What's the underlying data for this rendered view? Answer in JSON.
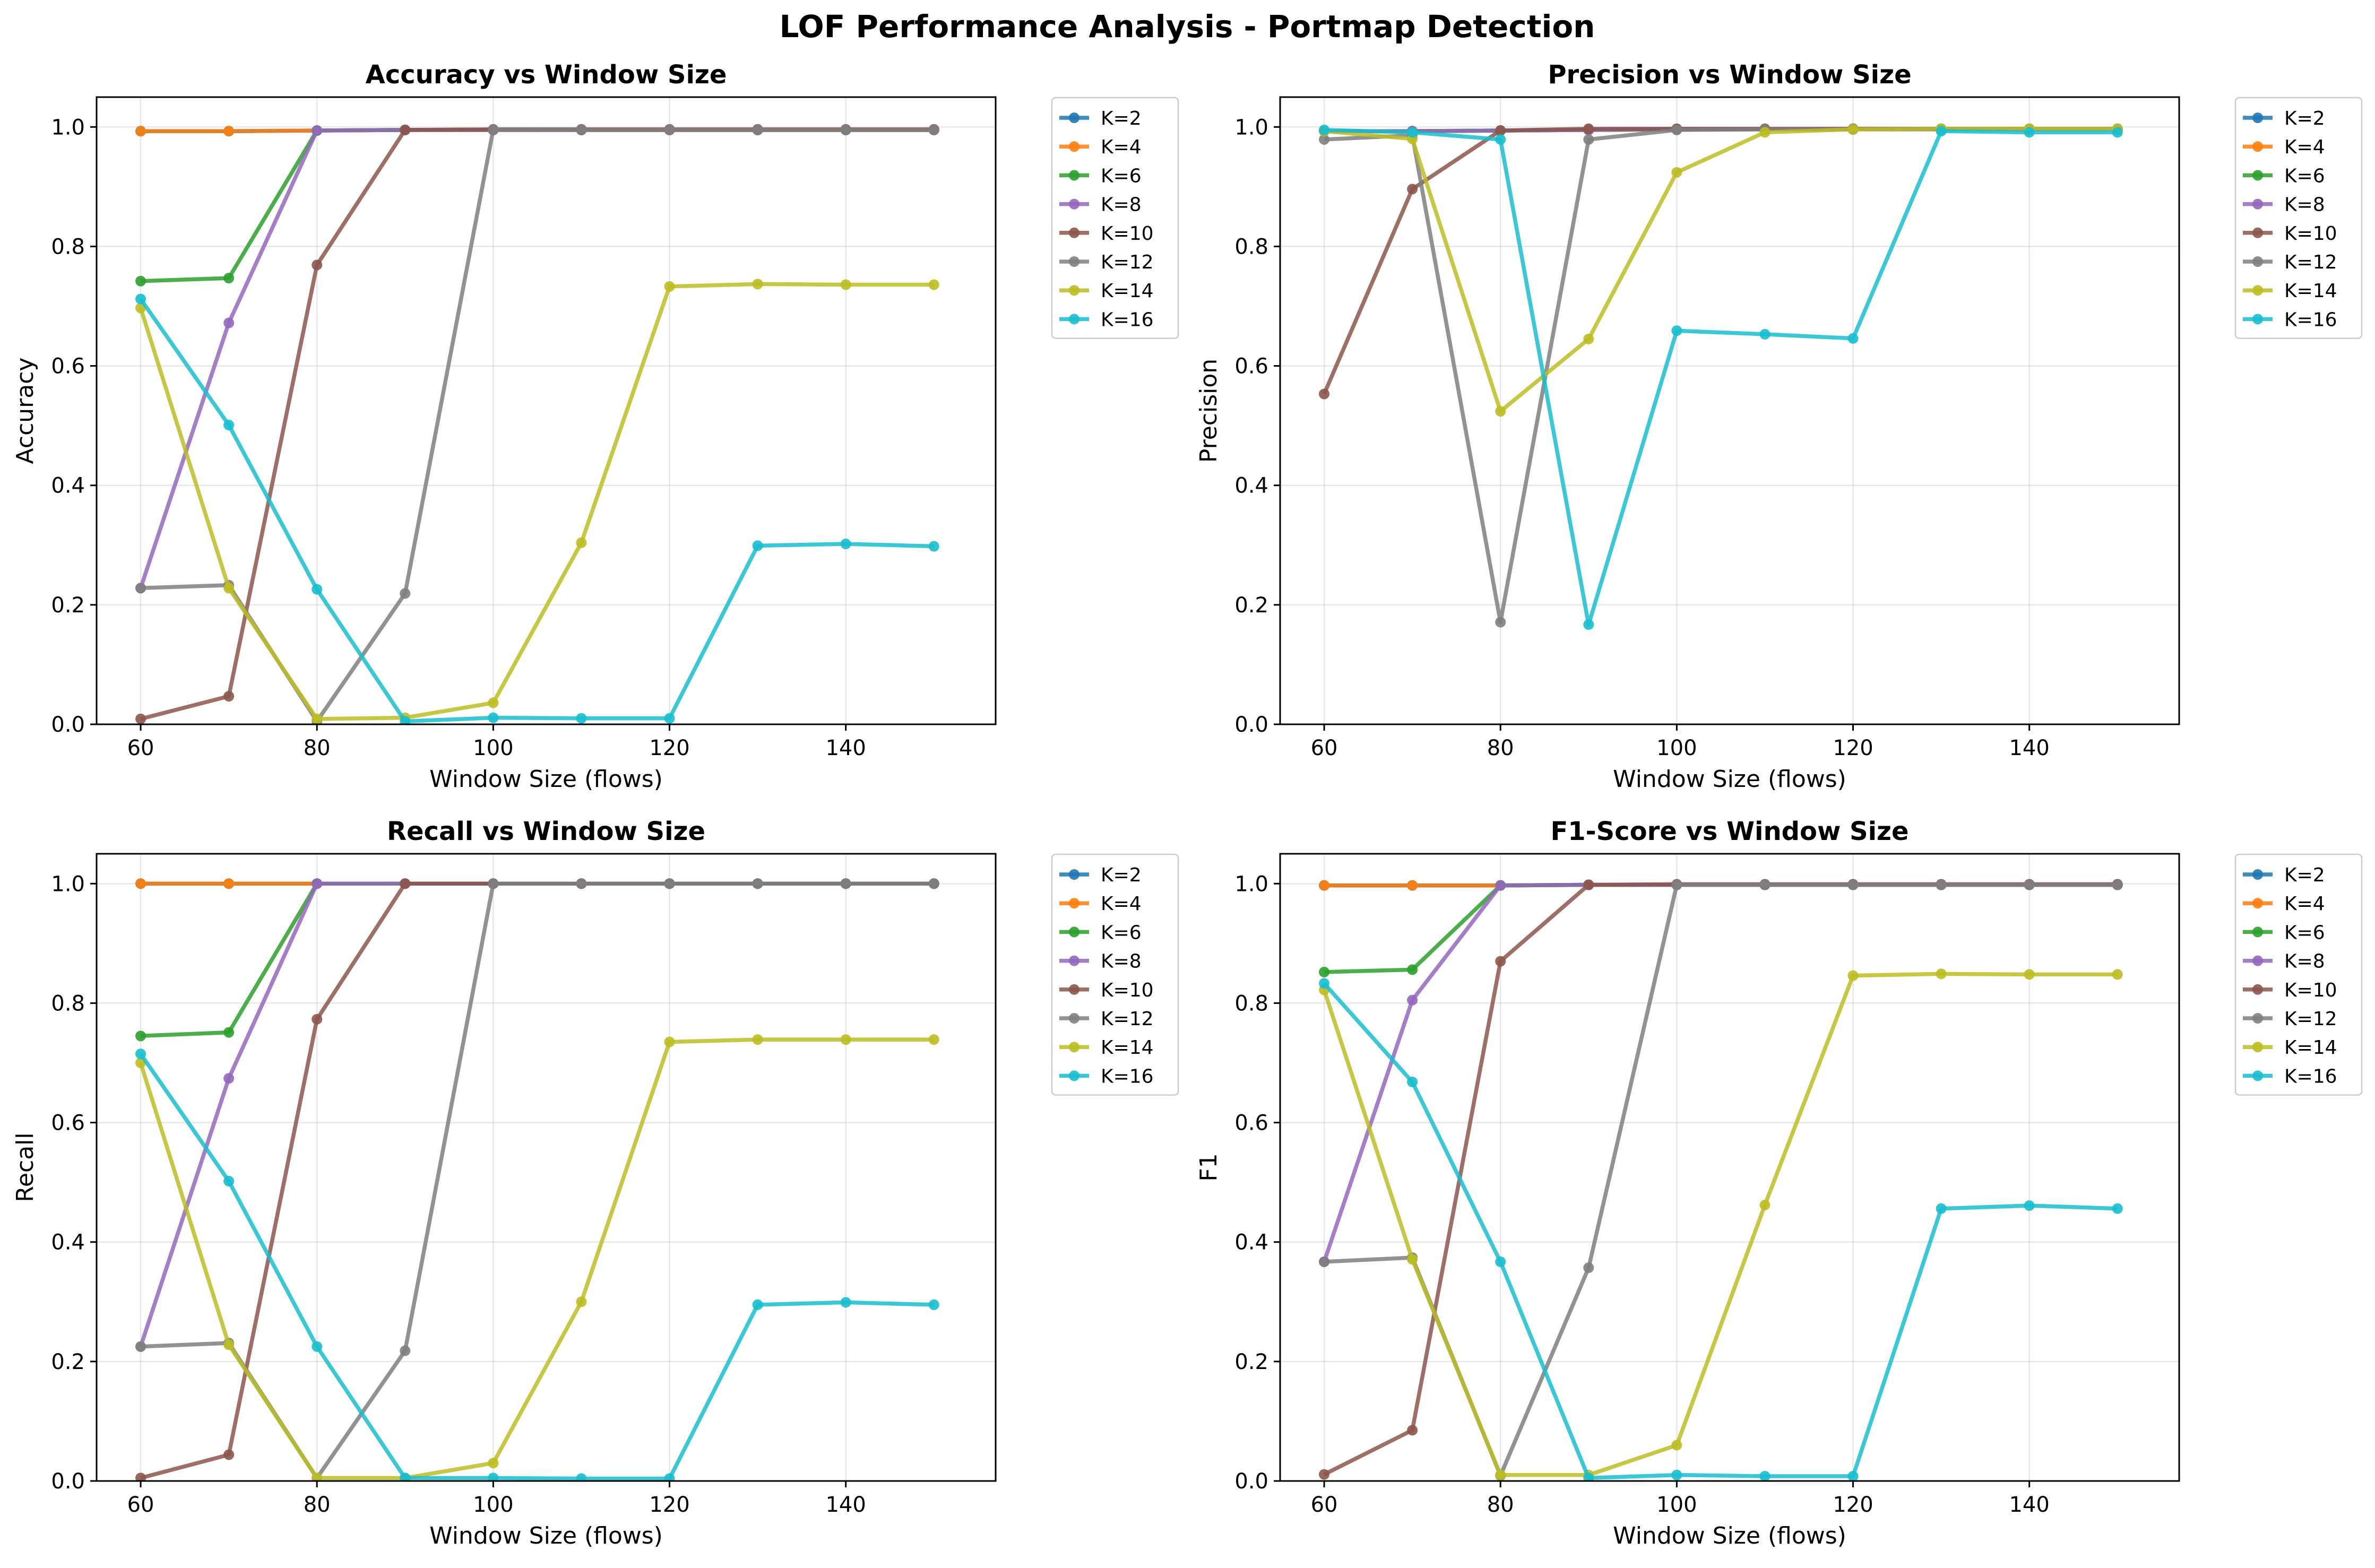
{
  "suptitle": "LOF Performance Analysis - Portmap Detection",
  "series_colors": {
    "K=2": "#1f77b4",
    "K=4": "#ff7f0e",
    "K=6": "#2ca02c",
    "K=8": "#9467bd",
    "K=10": "#8c564b",
    "K=12": "#7f7f7f",
    "K=14": "#bcbd22",
    "K=16": "#17becf"
  },
  "chart_data": [
    {
      "type": "line",
      "title": "Accuracy vs Window Size",
      "xlabel": "Window Size (flows)",
      "ylabel": "Accuracy",
      "xlim": [
        55,
        157
      ],
      "ylim": [
        0,
        1.05
      ],
      "xticks": [
        60,
        80,
        100,
        120,
        140
      ],
      "yticks": [
        0.0,
        0.2,
        0.4,
        0.6,
        0.8,
        1.0
      ],
      "grid": true,
      "legend": "outside-upper-right",
      "x": [
        60,
        70,
        80,
        90,
        100,
        110,
        120,
        130,
        140,
        150
      ],
      "series": [
        {
          "name": "K=2",
          "values": [
            0.993,
            0.993,
            0.994,
            0.995,
            0.995,
            0.995,
            0.995,
            0.995,
            0.995,
            0.995
          ]
        },
        {
          "name": "K=4",
          "values": [
            0.993,
            0.993,
            0.994,
            0.995,
            0.995,
            0.995,
            0.995,
            0.995,
            0.995,
            0.995
          ]
        },
        {
          "name": "K=6",
          "values": [
            0.742,
            0.747,
            0.994,
            0.995,
            0.995,
            0.995,
            0.995,
            0.995,
            0.995,
            0.995
          ]
        },
        {
          "name": "K=8",
          "values": [
            0.228,
            0.672,
            0.994,
            0.995,
            0.995,
            0.995,
            0.995,
            0.995,
            0.995,
            0.995
          ]
        },
        {
          "name": "K=10",
          "values": [
            0.009,
            0.047,
            0.769,
            0.995,
            0.996,
            0.996,
            0.996,
            0.996,
            0.996,
            0.996
          ]
        },
        {
          "name": "K=12",
          "values": [
            0.228,
            0.233,
            0.005,
            0.219,
            0.996,
            0.995,
            0.995,
            0.995,
            0.995,
            0.995
          ]
        },
        {
          "name": "K=14",
          "values": [
            0.697,
            0.228,
            0.009,
            0.011,
            0.036,
            0.304,
            0.733,
            0.737,
            0.736,
            0.736
          ]
        },
        {
          "name": "K=16",
          "values": [
            0.712,
            0.501,
            0.226,
            0.005,
            0.011,
            0.01,
            0.01,
            0.299,
            0.302,
            0.298
          ]
        }
      ]
    },
    {
      "type": "line",
      "title": "Precision vs Window Size",
      "xlabel": "Window Size (flows)",
      "ylabel": "Precision",
      "xlim": [
        55,
        157
      ],
      "ylim": [
        0,
        1.05
      ],
      "xticks": [
        60,
        80,
        100,
        120,
        140
      ],
      "yticks": [
        0.0,
        0.2,
        0.4,
        0.6,
        0.8,
        1.0
      ],
      "grid": true,
      "legend": "outside-upper-right",
      "x": [
        60,
        70,
        80,
        90,
        100,
        110,
        120,
        130,
        140,
        150
      ],
      "series": [
        {
          "name": "K=2",
          "values": [
            0.993,
            0.993,
            0.994,
            0.995,
            0.996,
            0.996,
            0.996,
            0.996,
            0.996,
            0.996
          ]
        },
        {
          "name": "K=4",
          "values": [
            0.993,
            0.993,
            0.994,
            0.995,
            0.996,
            0.996,
            0.996,
            0.996,
            0.996,
            0.996
          ]
        },
        {
          "name": "K=6",
          "values": [
            0.993,
            0.993,
            0.994,
            0.995,
            0.996,
            0.996,
            0.996,
            0.996,
            0.996,
            0.996
          ]
        },
        {
          "name": "K=8",
          "values": [
            0.993,
            0.993,
            0.994,
            0.995,
            0.996,
            0.996,
            0.996,
            0.996,
            0.996,
            0.996
          ]
        },
        {
          "name": "K=10",
          "values": [
            0.553,
            0.896,
            0.994,
            0.997,
            0.997,
            0.997,
            0.997,
            0.997,
            0.997,
            0.997
          ]
        },
        {
          "name": "K=12",
          "values": [
            0.979,
            0.986,
            0.171,
            0.979,
            0.995,
            0.996,
            0.996,
            0.996,
            0.996,
            0.996
          ]
        },
        {
          "name": "K=14",
          "values": [
            0.993,
            0.98,
            0.524,
            0.645,
            0.924,
            0.991,
            0.996,
            0.997,
            0.997,
            0.997
          ]
        },
        {
          "name": "K=16",
          "values": [
            0.995,
            0.991,
            0.979,
            0.167,
            0.659,
            0.653,
            0.646,
            0.993,
            0.991,
            0.991
          ]
        }
      ]
    },
    {
      "type": "line",
      "title": "Recall vs Window Size",
      "xlabel": "Window Size (flows)",
      "ylabel": "Recall",
      "xlim": [
        55,
        157
      ],
      "ylim": [
        0,
        1.05
      ],
      "xticks": [
        60,
        80,
        100,
        120,
        140
      ],
      "yticks": [
        0.0,
        0.2,
        0.4,
        0.6,
        0.8,
        1.0
      ],
      "grid": true,
      "legend": "outside-upper-right",
      "x": [
        60,
        70,
        80,
        90,
        100,
        110,
        120,
        130,
        140,
        150
      ],
      "series": [
        {
          "name": "K=2",
          "values": [
            1.0,
            1.0,
            1.0,
            1.0,
            1.0,
            1.0,
            1.0,
            1.0,
            1.0,
            1.0
          ]
        },
        {
          "name": "K=4",
          "values": [
            1.0,
            1.0,
            1.0,
            1.0,
            1.0,
            1.0,
            1.0,
            1.0,
            1.0,
            1.0
          ]
        },
        {
          "name": "K=6",
          "values": [
            0.745,
            0.751,
            1.0,
            1.0,
            1.0,
            1.0,
            1.0,
            1.0,
            1.0,
            1.0
          ]
        },
        {
          "name": "K=8",
          "values": [
            0.225,
            0.674,
            1.0,
            1.0,
            1.0,
            1.0,
            1.0,
            1.0,
            1.0,
            1.0
          ]
        },
        {
          "name": "K=10",
          "values": [
            0.005,
            0.044,
            0.773,
            1.0,
            1.0,
            1.0,
            1.0,
            1.0,
            1.0,
            1.0
          ]
        },
        {
          "name": "K=12",
          "values": [
            0.225,
            0.231,
            0.005,
            0.218,
            1.0,
            1.0,
            1.0,
            1.0,
            1.0,
            1.0
          ]
        },
        {
          "name": "K=14",
          "values": [
            0.7,
            0.228,
            0.005,
            0.005,
            0.03,
            0.3,
            0.735,
            0.739,
            0.739,
            0.739
          ]
        },
        {
          "name": "K=16",
          "values": [
            0.715,
            0.502,
            0.225,
            0.005,
            0.005,
            0.004,
            0.004,
            0.295,
            0.299,
            0.295
          ]
        }
      ]
    },
    {
      "type": "line",
      "title": "F1-Score vs Window Size",
      "xlabel": "Window Size (flows)",
      "ylabel": "F1",
      "xlim": [
        55,
        157
      ],
      "ylim": [
        0,
        1.05
      ],
      "xticks": [
        60,
        80,
        100,
        120,
        140
      ],
      "yticks": [
        0.0,
        0.2,
        0.4,
        0.6,
        0.8,
        1.0
      ],
      "grid": true,
      "legend": "outside-upper-right",
      "x": [
        60,
        70,
        80,
        90,
        100,
        110,
        120,
        130,
        140,
        150
      ],
      "series": [
        {
          "name": "K=2",
          "values": [
            0.997,
            0.997,
            0.997,
            0.998,
            0.998,
            0.998,
            0.998,
            0.998,
            0.998,
            0.998
          ]
        },
        {
          "name": "K=4",
          "values": [
            0.997,
            0.997,
            0.997,
            0.998,
            0.998,
            0.998,
            0.998,
            0.998,
            0.998,
            0.998
          ]
        },
        {
          "name": "K=6",
          "values": [
            0.852,
            0.856,
            0.997,
            0.998,
            0.998,
            0.998,
            0.998,
            0.998,
            0.998,
            0.998
          ]
        },
        {
          "name": "K=8",
          "values": [
            0.367,
            0.805,
            0.997,
            0.998,
            0.998,
            0.998,
            0.998,
            0.998,
            0.998,
            0.998
          ]
        },
        {
          "name": "K=10",
          "values": [
            0.011,
            0.085,
            0.87,
            0.998,
            0.999,
            0.999,
            0.999,
            0.999,
            0.999,
            0.999
          ]
        },
        {
          "name": "K=12",
          "values": [
            0.367,
            0.374,
            0.009,
            0.357,
            0.998,
            0.998,
            0.998,
            0.998,
            0.998,
            0.998
          ]
        },
        {
          "name": "K=14",
          "values": [
            0.822,
            0.371,
            0.01,
            0.01,
            0.06,
            0.462,
            0.846,
            0.849,
            0.848,
            0.848
          ]
        },
        {
          "name": "K=16",
          "values": [
            0.833,
            0.668,
            0.367,
            0.005,
            0.01,
            0.008,
            0.008,
            0.456,
            0.461,
            0.456
          ]
        }
      ]
    }
  ]
}
